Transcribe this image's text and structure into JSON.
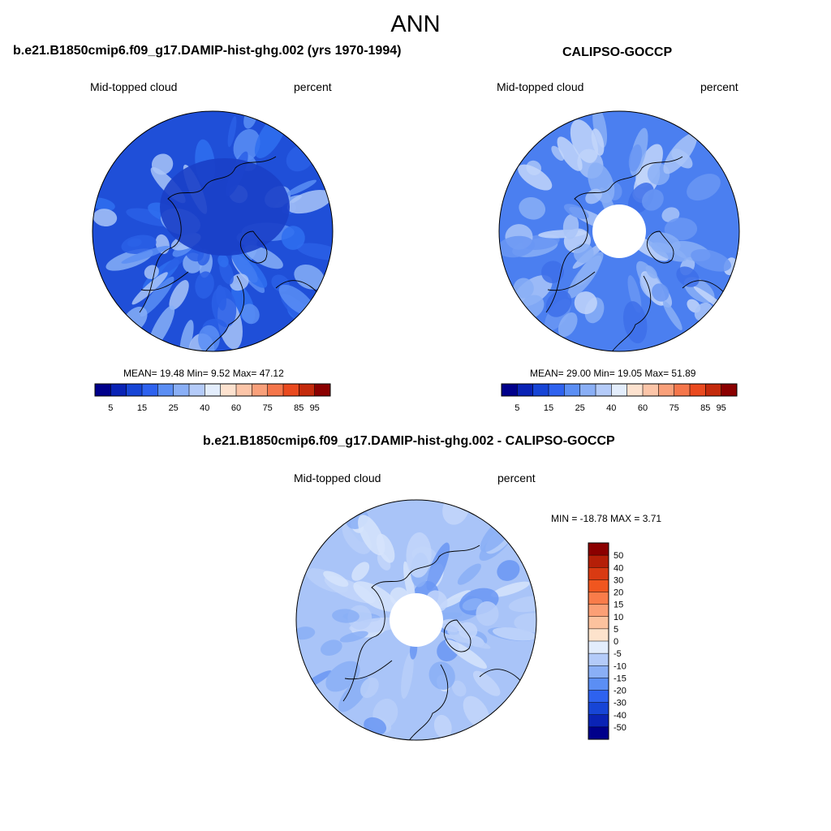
{
  "main_title": "ANN",
  "panels": [
    {
      "title": "b.e21.B1850cmip6.f09_g17.DAMIP-hist-ghg.002 (yrs 1970-1994)",
      "left_label": "Mid-topped cloud",
      "right_label": "percent",
      "stats": "MEAN=  19.48  Min=   9.52  Max=  47.12",
      "polar_hole": false,
      "field_colors": [
        "#1f4fd8",
        "#2a5fe6",
        "#2f6ef0",
        "#5b8ef4",
        "#87aff7",
        "#a9c4f8"
      ],
      "land_note": "",
      "colorbar_ticks": [
        "5",
        "15",
        "25",
        "40",
        "60",
        "75",
        "85",
        "95"
      ]
    },
    {
      "title": "CALIPSO-GOCCP",
      "left_label": "Mid-topped cloud",
      "right_label": "percent",
      "stats": "MEAN=  29.00  Min=  19.05  Max=  51.89",
      "polar_hole": true,
      "field_colors": [
        "#4b7ff0",
        "#6a96f3",
        "#8aaff6",
        "#a9c4f8",
        "#c3d6fa",
        "#3d6ee9"
      ],
      "land_note": "",
      "colorbar_ticks": [
        "5",
        "15",
        "25",
        "40",
        "60",
        "75",
        "85",
        "95"
      ]
    },
    {
      "title": "b.e21.B1850cmip6.f09_g17.DAMIP-hist-ghg.002 - CALIPSO-GOCCP",
      "left_label": "Mid-topped cloud",
      "right_label": "percent",
      "stats": "MIN = -18.78 MAX =   3.71",
      "polar_hole": true,
      "field_colors": [
        "#a9c4f8",
        "#c3d6fa",
        "#8aaff6",
        "#d6e4fb",
        "#6a96f3",
        "#b9cff9"
      ],
      "land_note": "",
      "colorbar_ticks": [
        "50",
        "40",
        "30",
        "20",
        "15",
        "10",
        "5",
        "0",
        "-5",
        "-10",
        "-15",
        "-20",
        "-30",
        "-40",
        "-50"
      ]
    }
  ],
  "abs_colorbar_colors": [
    "#00008b",
    "#0a23b5",
    "#1745d6",
    "#2e62ef",
    "#5b8ef4",
    "#8aaff6",
    "#b4cbf9",
    "#e3edfc",
    "#fde2cf",
    "#fcc5a8",
    "#f9a07a",
    "#f5764b",
    "#ea4a1f",
    "#c42a0c",
    "#8b0000"
  ],
  "diff_colorbar_colors": [
    "#8b0000",
    "#b51f08",
    "#d93a12",
    "#f0561f",
    "#f97c4a",
    "#fb9f75",
    "#fcc29e",
    "#fde3cc",
    "#e3edfc",
    "#b4cbf9",
    "#8aaff6",
    "#5b8ef4",
    "#2e62ef",
    "#1745d6",
    "#0a23b5",
    "#00008b"
  ]
}
